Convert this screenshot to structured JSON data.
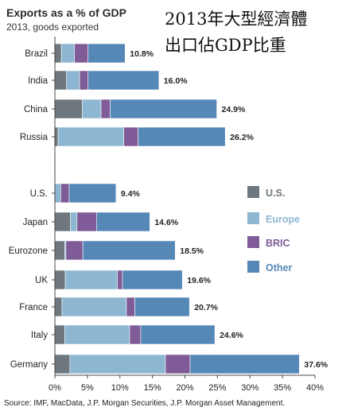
{
  "chart_data": {
    "type": "bar",
    "stacked": true,
    "orientation": "horizontal",
    "title": "Exports as a % of GDP",
    "subtitle": "2013, goods exported",
    "overlay_title": [
      "2013年大型經濟體",
      "出口佔GDP比重"
    ],
    "categories": [
      "Brazil",
      "India",
      "China",
      "Russia",
      "U.S.",
      "Japan",
      "Eurozone",
      "UK",
      "France",
      "Italy",
      "Germany"
    ],
    "series": [
      {
        "name": "U.S.",
        "color": "#6d777d",
        "values": [
          1.0,
          1.8,
          4.2,
          0.5,
          0.0,
          2.4,
          1.5,
          1.6,
          1.1,
          1.5,
          2.3
        ]
      },
      {
        "name": "Europe",
        "color": "#8cb6d1",
        "values": [
          2.0,
          2.0,
          2.9,
          10.1,
          0.9,
          1.0,
          0.2,
          8.0,
          9.9,
          10.0,
          14.7
        ]
      },
      {
        "name": "BRIC",
        "color": "#7f5b98",
        "values": [
          2.1,
          1.3,
          1.4,
          2.2,
          1.3,
          3.0,
          2.6,
          0.8,
          1.3,
          1.7,
          3.8
        ]
      },
      {
        "name": "Other",
        "color": "#5587b7",
        "values": [
          5.7,
          10.9,
          16.4,
          13.4,
          7.2,
          8.2,
          14.2,
          9.2,
          8.4,
          11.4,
          16.8
        ]
      }
    ],
    "totals": [
      "10.8%",
      "16.0%",
      "24.9%",
      "26.2%",
      "9.4%",
      "14.6%",
      "18.5%",
      "19.6%",
      "20.7%",
      "24.6%",
      "37.6%"
    ],
    "xlim": [
      0,
      40
    ],
    "xticks": [
      "0%",
      "5%",
      "10%",
      "15%",
      "20%",
      "25%",
      "30%",
      "35%",
      "40%"
    ],
    "grid": false,
    "legend_position": "right"
  },
  "source": "Source: IMF, MacData, J.P. Morgan Securities, J.P. Morgan Asset Management."
}
